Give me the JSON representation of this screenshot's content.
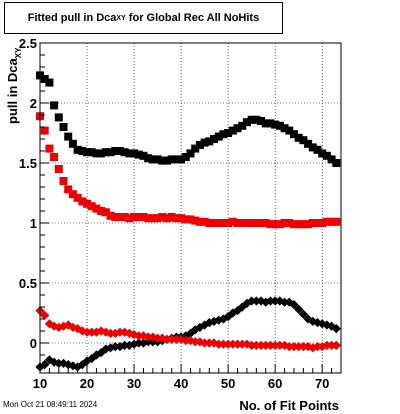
{
  "title": {
    "main": "Fitted pull in Dca",
    "sub": "XY",
    "rest": " for Global Rec All NoHits"
  },
  "timestamp": "Mon Oct 21 08:49:11 2024",
  "colors": {
    "black_series": "#000000",
    "red_series": "#ee0000",
    "grid": "#000000"
  },
  "chart_data": {
    "type": "scatter",
    "xlabel": "No. of Fit Points",
    "ylabel_main": "pull in Dca",
    "ylabel_sub": "XY",
    "xlim": [
      10,
      74
    ],
    "ylim": [
      -0.25,
      2.5
    ],
    "xticks": [
      10,
      20,
      30,
      40,
      50,
      60,
      70
    ],
    "yticks": [
      0,
      0.5,
      1,
      1.5,
      2,
      2.5
    ],
    "ytick_labels": [
      "0",
      "0.5",
      "1",
      "1.5",
      "2",
      "2.5"
    ],
    "grid": true,
    "series": [
      {
        "marker": "square",
        "color": "#000000",
        "x": [
          10,
          11,
          12,
          13,
          14,
          15,
          16,
          17,
          18,
          19,
          20,
          21,
          22,
          23,
          24,
          25,
          26,
          27,
          28,
          29,
          30,
          31,
          32,
          33,
          34,
          35,
          36,
          37,
          38,
          39,
          40,
          41,
          42,
          43,
          44,
          45,
          46,
          47,
          48,
          49,
          50,
          51,
          52,
          53,
          54,
          55,
          56,
          57,
          58,
          59,
          60,
          61,
          62,
          63,
          64,
          65,
          66,
          67,
          68,
          69,
          70,
          71,
          72,
          73
        ],
        "y": [
          2.23,
          2.2,
          2.17,
          1.98,
          1.88,
          1.8,
          1.72,
          1.66,
          1.61,
          1.6,
          1.59,
          1.59,
          1.58,
          1.58,
          1.59,
          1.59,
          1.6,
          1.6,
          1.59,
          1.58,
          1.58,
          1.57,
          1.56,
          1.54,
          1.53,
          1.53,
          1.52,
          1.52,
          1.53,
          1.53,
          1.53,
          1.55,
          1.58,
          1.62,
          1.65,
          1.67,
          1.68,
          1.7,
          1.72,
          1.74,
          1.75,
          1.77,
          1.79,
          1.81,
          1.84,
          1.86,
          1.86,
          1.85,
          1.83,
          1.83,
          1.82,
          1.81,
          1.79,
          1.77,
          1.74,
          1.71,
          1.69,
          1.66,
          1.63,
          1.61,
          1.58,
          1.56,
          1.53,
          1.5
        ]
      },
      {
        "marker": "square",
        "color": "#ee0000",
        "x": [
          10,
          11,
          12,
          13,
          14,
          15,
          16,
          17,
          18,
          19,
          20,
          21,
          22,
          23,
          24,
          25,
          26,
          27,
          28,
          29,
          30,
          31,
          32,
          33,
          34,
          35,
          36,
          37,
          38,
          39,
          40,
          41,
          42,
          43,
          44,
          45,
          46,
          47,
          48,
          49,
          50,
          51,
          52,
          53,
          54,
          55,
          56,
          57,
          58,
          59,
          60,
          61,
          62,
          63,
          64,
          65,
          66,
          67,
          68,
          69,
          70,
          71,
          72,
          73
        ],
        "y": [
          1.89,
          1.77,
          1.62,
          1.55,
          1.45,
          1.35,
          1.28,
          1.24,
          1.21,
          1.18,
          1.16,
          1.14,
          1.12,
          1.1,
          1.09,
          1.06,
          1.05,
          1.05,
          1.05,
          1.04,
          1.05,
          1.05,
          1.05,
          1.04,
          1.04,
          1.04,
          1.05,
          1.04,
          1.05,
          1.04,
          1.04,
          1.03,
          1.03,
          1.02,
          1.01,
          1.01,
          1.0,
          1.0,
          1.0,
          1.0,
          1.0,
          1.01,
          1.0,
          1.0,
          1.0,
          1.0,
          1.0,
          1.0,
          1.0,
          0.99,
          0.99,
          0.99,
          1.0,
          1.0,
          0.99,
          0.99,
          0.99,
          0.99,
          1.0,
          1.0,
          1.0,
          1.01,
          1.01,
          1.01
        ]
      },
      {
        "marker": "diamond",
        "color": "#000000",
        "x": [
          10,
          11,
          12,
          13,
          14,
          15,
          16,
          17,
          18,
          19,
          20,
          21,
          22,
          23,
          24,
          25,
          26,
          27,
          28,
          29,
          30,
          31,
          32,
          33,
          34,
          35,
          36,
          37,
          38,
          39,
          40,
          41,
          42,
          43,
          44,
          45,
          46,
          47,
          48,
          49,
          50,
          51,
          52,
          53,
          54,
          55,
          56,
          57,
          58,
          59,
          60,
          61,
          62,
          63,
          64,
          65,
          66,
          67,
          68,
          69,
          70,
          71,
          72,
          73
        ],
        "y": [
          -0.2,
          -0.18,
          -0.14,
          -0.16,
          -0.17,
          -0.17,
          -0.18,
          -0.19,
          -0.2,
          -0.18,
          -0.15,
          -0.13,
          -0.1,
          -0.08,
          -0.05,
          -0.04,
          -0.03,
          -0.03,
          -0.02,
          -0.02,
          -0.01,
          0.0,
          0.0,
          0.01,
          0.01,
          0.01,
          0.02,
          0.03,
          0.04,
          0.05,
          0.05,
          0.06,
          0.08,
          0.11,
          0.13,
          0.15,
          0.17,
          0.18,
          0.19,
          0.2,
          0.22,
          0.25,
          0.27,
          0.3,
          0.33,
          0.35,
          0.35,
          0.35,
          0.34,
          0.35,
          0.35,
          0.35,
          0.34,
          0.34,
          0.32,
          0.28,
          0.24,
          0.2,
          0.18,
          0.17,
          0.16,
          0.15,
          0.14,
          0.12
        ]
      },
      {
        "marker": "diamond",
        "color": "#ee0000",
        "x": [
          10,
          11,
          12,
          13,
          14,
          15,
          16,
          17,
          18,
          19,
          20,
          21,
          22,
          23,
          24,
          25,
          26,
          27,
          28,
          29,
          30,
          31,
          32,
          33,
          34,
          35,
          36,
          37,
          38,
          39,
          40,
          41,
          42,
          43,
          44,
          45,
          46,
          47,
          48,
          49,
          50,
          51,
          52,
          53,
          54,
          55,
          56,
          57,
          58,
          59,
          60,
          61,
          62,
          63,
          64,
          65,
          66,
          67,
          68,
          69,
          70,
          71,
          72,
          73
        ],
        "y": [
          0.27,
          0.23,
          0.16,
          0.14,
          0.13,
          0.14,
          0.15,
          0.13,
          0.12,
          0.1,
          0.09,
          0.09,
          0.09,
          0.1,
          0.09,
          0.08,
          0.08,
          0.09,
          0.09,
          0.08,
          0.07,
          0.06,
          0.06,
          0.05,
          0.05,
          0.04,
          0.04,
          0.03,
          0.03,
          0.03,
          0.03,
          0.02,
          0.02,
          0.01,
          0.01,
          0.0,
          0.0,
          0.0,
          -0.01,
          -0.01,
          -0.01,
          -0.01,
          -0.01,
          -0.01,
          -0.01,
          -0.02,
          -0.02,
          -0.02,
          -0.02,
          -0.02,
          -0.02,
          -0.02,
          -0.02,
          -0.03,
          -0.03,
          -0.03,
          -0.03,
          -0.03,
          -0.04,
          -0.03,
          -0.03,
          -0.02,
          -0.02,
          -0.02
        ]
      }
    ]
  }
}
